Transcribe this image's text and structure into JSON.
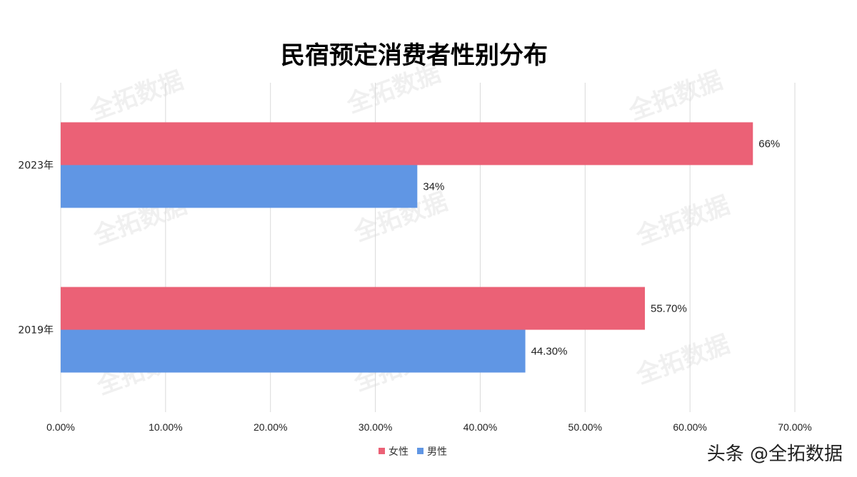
{
  "chart_data": {
    "type": "bar",
    "orientation": "horizontal",
    "title": "民宿预定消费者性别分布",
    "categories": [
      "2023年",
      "2019年"
    ],
    "series": [
      {
        "name": "女性",
        "color": "#EB6176",
        "values": [
          66,
          55.7
        ],
        "labels": [
          "66%",
          "55.70%"
        ]
      },
      {
        "name": "男性",
        "color": "#6096E4",
        "values": [
          34,
          44.3
        ],
        "labels": [
          "34%",
          "44.30%"
        ]
      }
    ],
    "xlim": [
      0,
      70
    ],
    "x_ticks": [
      "0.00%",
      "10.00%",
      "20.00%",
      "30.00%",
      "40.00%",
      "50.00%",
      "60.00%",
      "70.00%"
    ],
    "grid": "vertical",
    "legend_position": "bottom"
  },
  "watermark": "全拓数据",
  "footer": "头条 @全拓数据"
}
